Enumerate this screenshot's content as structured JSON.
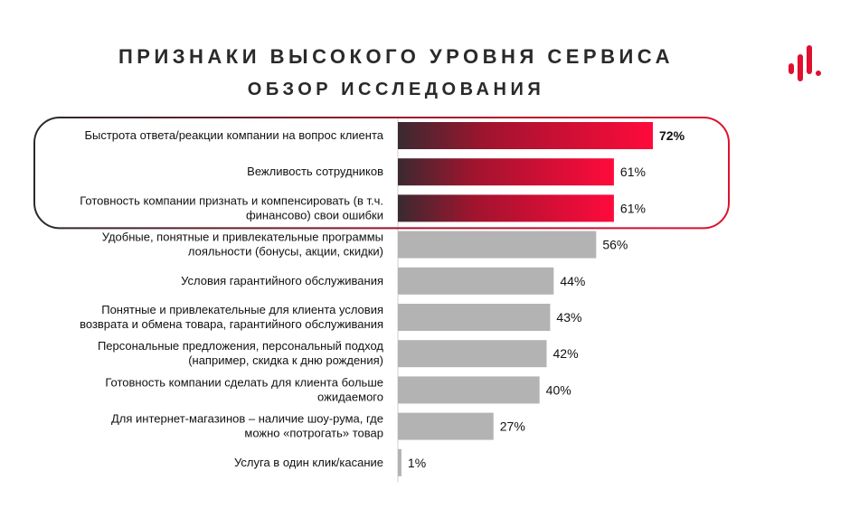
{
  "title": "ПРИЗНАКИ ВЫСОКОГО УРОВНЯ СЕРВИСА",
  "subtitle": "ОБЗОР ИССЛЕДОВАНИЯ",
  "colors": {
    "highlight_start": "#3a2a30",
    "highlight_end": "#ff0a3c",
    "regular_bar": "#b3b3b3",
    "frame": "#e0102e",
    "logo": "#e0102e"
  },
  "chart_data": {
    "type": "bar",
    "orientation": "horizontal",
    "xlim": [
      0,
      100
    ],
    "categories": [
      [
        "Быстрота ответа/реакции компании на вопрос клиента"
      ],
      [
        "Вежливость сотрудников"
      ],
      [
        "Готовность компании признать и компенсировать (в т.ч.",
        "финансово) свои ошибки"
      ],
      [
        "Удобные, понятные и привлекательные программы",
        "лояльности (бонусы, акции, скидки)"
      ],
      [
        "Условия гарантийного обслуживания"
      ],
      [
        "Понятные и привлекательные для клиента условия",
        "возврата и обмена товара, гарантийного обслуживания"
      ],
      [
        "Персональные предложения, персональный подход",
        "(например, скидка к дню рождения)"
      ],
      [
        "Готовность компании сделать для клиента больше",
        "ожидаемого"
      ],
      [
        "Для интернет-магазинов – наличие шоу-рума, где",
        "можно «потрогать» товар"
      ],
      [
        "Услуга в один клик/касание"
      ]
    ],
    "values": [
      72,
      61,
      61,
      56,
      44,
      43,
      42,
      40,
      27,
      1
    ],
    "value_labels": [
      "72%",
      "61%",
      "61%",
      "56%",
      "44%",
      "43%",
      "42%",
      "40%",
      "27%",
      "1%"
    ],
    "highlighted_count": 3,
    "bold_value_index": 0
  }
}
